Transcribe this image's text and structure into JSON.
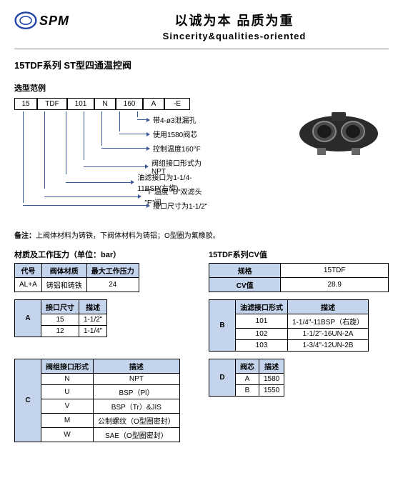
{
  "header": {
    "cn_slogan": "以诚为本 品质为重",
    "en_slogan": "Sincerity&qualities-oriented",
    "logo": "SPM"
  },
  "title": "15TDF系列 ST型四通温控阀",
  "subtitle_model": "选型范例",
  "model_cells": [
    "15",
    "TDF",
    "101",
    "N",
    "160",
    "A",
    "-E"
  ],
  "arrows": [
    {
      "text": "带4-ø3泄漏孔"
    },
    {
      "text": "使用1580阀芯"
    },
    {
      "text": "控制温度160°F"
    },
    {
      "text": "阀组接口形式为NPT"
    },
    {
      "text": "油滤接口为1-1/4-11BSP(右旋)"
    },
    {
      "text": "\"T\"温度 \"D\"双滤头 \"F\"阀"
    },
    {
      "text": "接口尺寸为1-1/2\""
    }
  ],
  "note_label": "备注：",
  "note_text": "上阀体材料为铸铁，下阀体材料为铸铝；O型圈为氟橡胶。",
  "tbl1_title": "材质及工作压力（单位：bar）",
  "tbl1": {
    "h": [
      "代号",
      "阀体材质",
      "最大工作压力"
    ],
    "r": [
      [
        "AL+A",
        "铸铝和铸铁",
        "24"
      ]
    ]
  },
  "tbl2_title": "15TDF系列CV值",
  "tbl2": {
    "r": [
      [
        "规格",
        "15TDF"
      ],
      [
        "CV值",
        "28.9"
      ]
    ]
  },
  "tblA": {
    "label": "A",
    "h": [
      "接口尺寸",
      "描述"
    ],
    "r": [
      [
        "15",
        "1-1/2\""
      ],
      [
        "12",
        "1-1/4\""
      ]
    ]
  },
  "tblB": {
    "label": "B",
    "h": [
      "油滤接口形式",
      "描述"
    ],
    "r": [
      [
        "101",
        "1-1/4\"-11BSP（右旋）"
      ],
      [
        "102",
        "1-1/2\"-16UN-2A"
      ],
      [
        "103",
        "1-3/4\"-12UN-2B"
      ]
    ]
  },
  "tblC": {
    "label": "C",
    "h": [
      "阀组接口形式",
      "描述"
    ],
    "r": [
      [
        "N",
        "NPT"
      ],
      [
        "U",
        "BSP（Pl）"
      ],
      [
        "V",
        "BSP（Tr）&JIS"
      ],
      [
        "M",
        "公制螺纹（O型圈密封）"
      ],
      [
        "W",
        "SAE（O型圈密封）"
      ]
    ]
  },
  "tblD": {
    "label": "D",
    "h": [
      "阀芯",
      "描述"
    ],
    "r": [
      [
        "A",
        "1580"
      ],
      [
        "B",
        "1550"
      ]
    ]
  }
}
